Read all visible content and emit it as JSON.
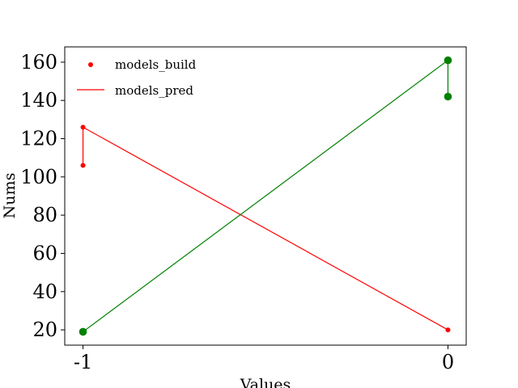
{
  "chart_data": {
    "type": "line",
    "title": "",
    "xlabel": "Values",
    "ylabel": "Nums",
    "xlim": [
      -1.05,
      0.05
    ],
    "ylim": [
      12,
      168
    ],
    "x_ticks": [
      -1,
      0
    ],
    "x_tick_labels": [
      "-1",
      "0"
    ],
    "y_ticks": [
      20,
      40,
      60,
      80,
      100,
      120,
      140,
      160
    ],
    "y_tick_labels": [
      "20",
      "40",
      "60",
      "80",
      "100",
      "120",
      "140",
      "160"
    ],
    "grid": false,
    "legend": {
      "placement": "top-left",
      "entries": [
        {
          "label": "models_build",
          "marker": "dot",
          "color": "#ff0000"
        },
        {
          "label": "models_pred",
          "marker": "line",
          "color": "#ff0000"
        }
      ]
    },
    "series": [
      {
        "color": "#ff0000",
        "marker_size": "small",
        "points": [
          {
            "x": -1,
            "y": 106
          },
          {
            "x": -1,
            "y": 126
          },
          {
            "x": 0,
            "y": 20
          }
        ]
      },
      {
        "color": "#008000",
        "marker_size": "large",
        "points": [
          {
            "x": -1,
            "y": 19
          },
          {
            "x": 0,
            "y": 161
          },
          {
            "x": 0,
            "y": 142
          }
        ]
      }
    ]
  }
}
